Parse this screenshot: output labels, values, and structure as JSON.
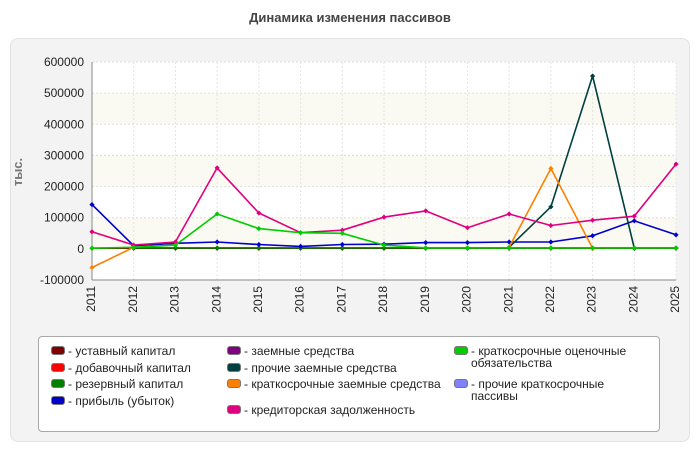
{
  "chart_data": {
    "type": "line",
    "title": "Динамика изменения пассивов",
    "ylabel": "тыс.",
    "xlabel": "",
    "ylim": [
      -100000,
      600000
    ],
    "yticks": [
      -100000,
      0,
      100000,
      200000,
      300000,
      400000,
      500000,
      600000
    ],
    "ytick_labels": [
      "-100000",
      "0",
      "100000",
      "200000",
      "300000",
      "400000",
      "500000",
      "600000"
    ],
    "categories": [
      "2011",
      "2012",
      "2013",
      "2014",
      "2015",
      "2016",
      "2017",
      "2018",
      "2019",
      "2020",
      "2021",
      "2022",
      "2023",
      "2024",
      "2025"
    ],
    "grid": true,
    "legend_position": "bottom",
    "series": [
      {
        "name": "уставный капитал",
        "color": "#800000",
        "values": [
          2000,
          2000,
          2000,
          2000,
          2000,
          2000,
          2000,
          2000,
          2000,
          2000,
          2000,
          2000,
          2000,
          2000,
          2000
        ]
      },
      {
        "name": "добавочный капитал",
        "color": "#ff0000",
        "values": [
          null,
          null,
          null,
          null,
          null,
          null,
          null,
          null,
          null,
          null,
          null,
          null,
          null,
          null,
          null
        ]
      },
      {
        "name": "резервный капитал",
        "color": "#008000",
        "values": [
          null,
          3000,
          3000,
          3000,
          3000,
          3000,
          3000,
          3000,
          3000,
          3000,
          3000,
          3000,
          3000,
          3000,
          3000
        ]
      },
      {
        "name": "прибыль (убыток)",
        "color": "#0000cc",
        "values": [
          142000,
          10000,
          18000,
          22000,
          14000,
          8000,
          14000,
          15000,
          20000,
          20000,
          22000,
          22000,
          42000,
          90000,
          45000
        ]
      },
      {
        "name": "заемные средства",
        "color": "#800080",
        "values": [
          null,
          null,
          null,
          null,
          null,
          null,
          null,
          null,
          null,
          null,
          null,
          null,
          null,
          null,
          null
        ]
      },
      {
        "name": "прочие заемные средства",
        "color": "#004040",
        "values": [
          null,
          null,
          null,
          null,
          null,
          null,
          null,
          null,
          null,
          null,
          5000,
          135000,
          555000,
          2000,
          null
        ]
      },
      {
        "name": "краткосрочные заемные средства",
        "color": "#ff8000",
        "values": [
          -60000,
          5000,
          null,
          null,
          null,
          null,
          null,
          null,
          null,
          null,
          5000,
          258000,
          2000,
          null,
          null
        ]
      },
      {
        "name": "кредиторская задолженность",
        "color": "#e0007f",
        "values": [
          55000,
          12000,
          22000,
          260000,
          115000,
          52000,
          60000,
          102000,
          122000,
          68000,
          112000,
          75000,
          92000,
          105000,
          272000
        ]
      },
      {
        "name": "краткосрочные оценочные обязательства",
        "color": "#00cc00",
        "values": [
          2000,
          5000,
          12000,
          112000,
          65000,
          52000,
          50000,
          12000,
          3000,
          3000,
          3000,
          3000,
          3000,
          3000,
          3000
        ]
      },
      {
        "name": "прочие краткосрочные пассивы",
        "color": "#8080ff",
        "values": [
          null,
          null,
          null,
          null,
          null,
          null,
          null,
          null,
          null,
          null,
          null,
          null,
          null,
          null,
          null
        ]
      }
    ]
  }
}
